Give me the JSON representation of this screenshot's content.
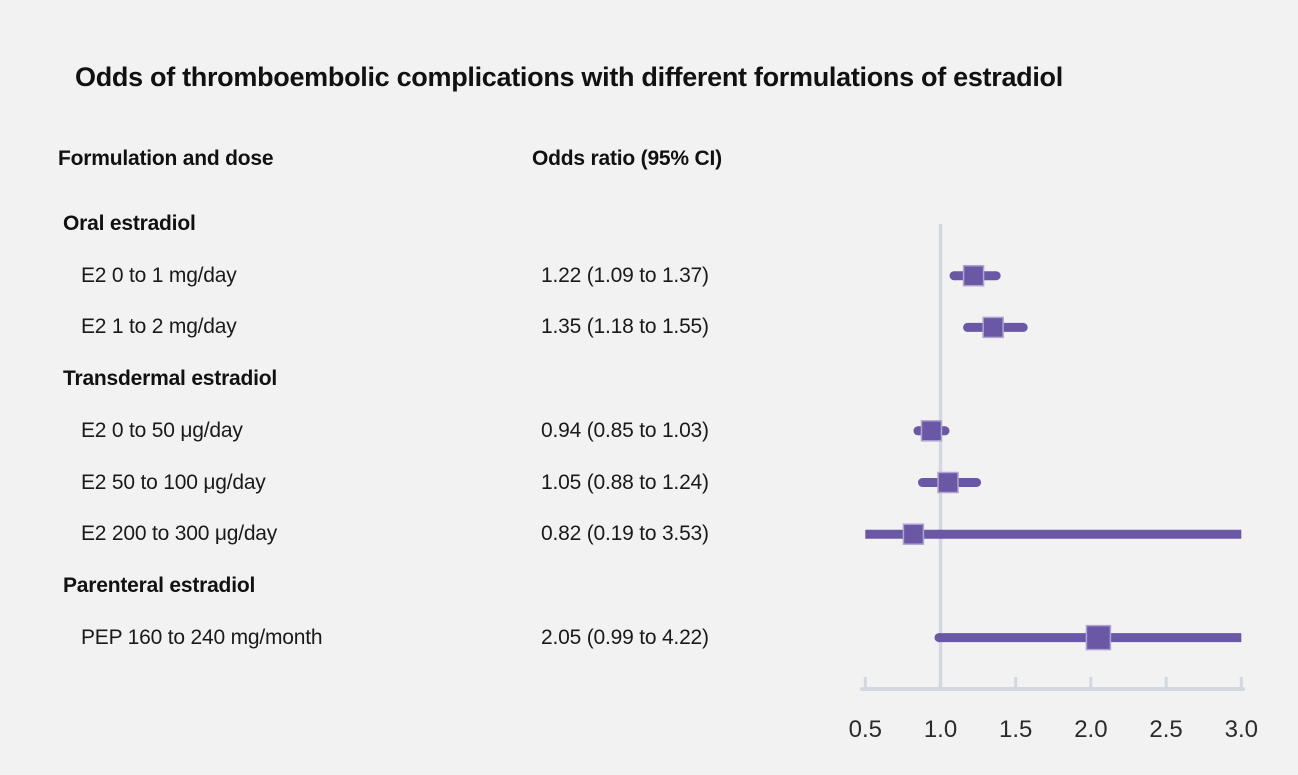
{
  "title": "Odds of thromboembolic complications with different formulations of estradiol",
  "columns": {
    "left": "Formulation and dose",
    "right": "Odds ratio (95% CI)"
  },
  "colors": {
    "background": "#f2f2f2",
    "text": "#1a1a1a",
    "marker": "#6a57a5",
    "marker_border": "#b0a3d0",
    "axis": "#d2d7e0",
    "tick_label": "#2b2b2b"
  },
  "chart_data": {
    "type": "forest",
    "title": "Odds of thromboembolic complications with different formulations of estradiol",
    "xlim": [
      0.5,
      3.0
    ],
    "reference_line": 1.0,
    "ticks": [
      0.5,
      1.0,
      1.5,
      2.0,
      2.5,
      3.0
    ],
    "tick_labels": [
      "0.5",
      "1.0",
      "1.5",
      "2.0",
      "2.5",
      "3.0"
    ],
    "legend_position": "none",
    "grid": false,
    "rows": [
      {
        "kind": "section",
        "label": "Oral estradiol"
      },
      {
        "kind": "item",
        "label": "E2 0 to 1 mg/day",
        "or_text": "1.22 (1.09 to 1.37)",
        "estimate": 1.22,
        "ci_low": 1.09,
        "ci_high": 1.37,
        "marker_size": 20
      },
      {
        "kind": "item",
        "label": "E2 1 to 2 mg/day",
        "or_text": "1.35 (1.18 to 1.55)",
        "estimate": 1.35,
        "ci_low": 1.18,
        "ci_high": 1.55,
        "marker_size": 20
      },
      {
        "kind": "section",
        "label": "Transdermal estradiol"
      },
      {
        "kind": "item",
        "label": "E2 0 to 50 μg/day",
        "or_text": "0.94 (0.85 to 1.03)",
        "estimate": 0.94,
        "ci_low": 0.85,
        "ci_high": 1.03,
        "marker_size": 20
      },
      {
        "kind": "item",
        "label": "E2 50 to 100 μg/day",
        "or_text": "1.05 (0.88 to 1.24)",
        "estimate": 1.05,
        "ci_low": 0.88,
        "ci_high": 1.24,
        "marker_size": 20
      },
      {
        "kind": "item",
        "label": "E2 200 to 300 μg/day",
        "or_text": "0.82 (0.19 to 3.53)",
        "estimate": 0.82,
        "ci_low": 0.19,
        "ci_high": 3.53,
        "marker_size": 20
      },
      {
        "kind": "section",
        "label": "Parenteral estradiol"
      },
      {
        "kind": "item",
        "label": "PEP 160 to 240 mg/month",
        "or_text": "2.05 (0.99 to 4.22)",
        "estimate": 2.05,
        "ci_low": 0.99,
        "ci_high": 4.22,
        "marker_size": 24
      }
    ]
  }
}
